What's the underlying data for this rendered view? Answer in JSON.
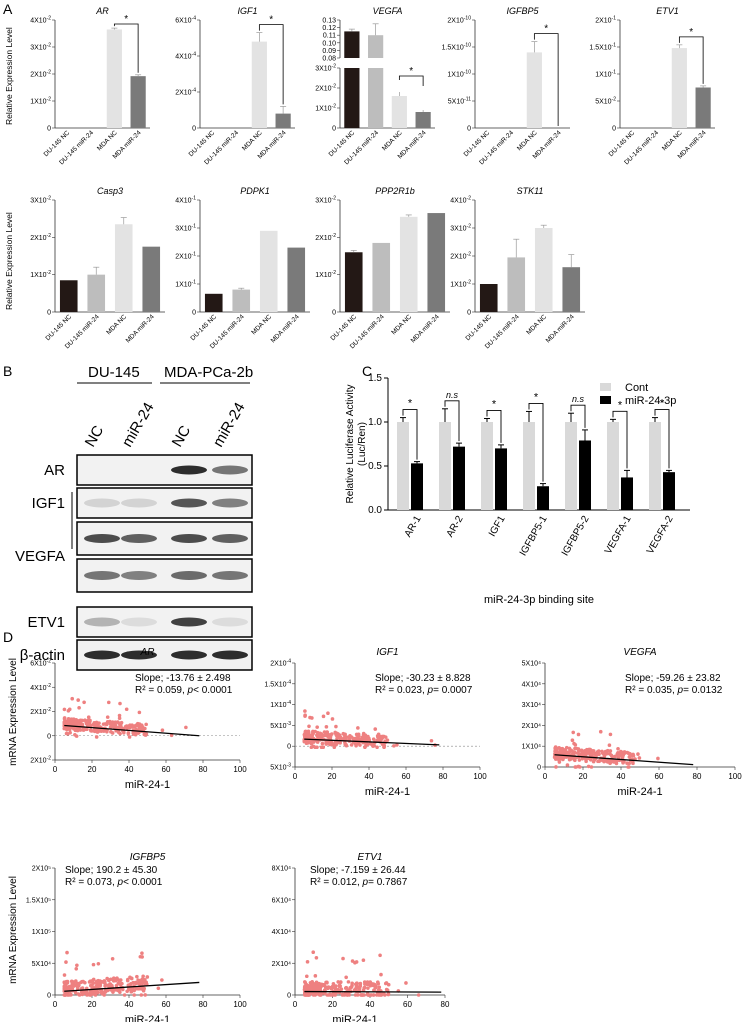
{
  "panels": {
    "A": "A",
    "B": "B",
    "C": "C",
    "D": "D"
  },
  "colors": {
    "nc_du": "#231815",
    "mir_du": "#bdbdbd",
    "nc_mda": "#e3e3e3",
    "mir_mda": "#7a7a7a",
    "scatter": "#ee8080",
    "cont": "#d9d9d9",
    "mir": "#000000"
  },
  "panelA": {
    "ylabel": "Relative Expression Level",
    "categories": [
      "DU-145 NC",
      "DU-145 miR-24",
      "MDA NC",
      "MDA miR-24"
    ],
    "charts": [
      {
        "title": "AR",
        "ticks": [
          "0",
          "1X10-2",
          "2X10-2",
          "3X10-2",
          "4X10-2"
        ],
        "ymax": 4,
        "values": [
          0,
          0,
          3.65,
          1.92
        ],
        "errors": [
          0,
          0,
          0.05,
          0.05
        ],
        "sig": "*"
      },
      {
        "title": "IGF1",
        "ticks": [
          "0",
          "2X10-4",
          "4X10-4",
          "6X10-4"
        ],
        "ymax": 6,
        "values": [
          0,
          0,
          4.8,
          0.8
        ],
        "errors": [
          0,
          0,
          0.5,
          0.4
        ],
        "sig": "*"
      },
      {
        "title": "VEGFA",
        "ticks_top": [
          "0.08",
          "0.09",
          "0.10",
          "0.11",
          "0.12",
          "0.13"
        ],
        "ticks_bottom": [
          "0",
          "1X10-2",
          "2X10-2",
          "3X10-2"
        ],
        "values": [
          0.115,
          0.11,
          0.016,
          0.008
        ],
        "errors": [
          0.003,
          0.015,
          0.002,
          0.001
        ],
        "sig": "*"
      },
      {
        "title": "IGFBP5",
        "ticks": [
          "0",
          "5X10-11",
          "1X10-10",
          "1.5X10-10",
          "2X10-10"
        ],
        "ymax": 2,
        "values": [
          0,
          0,
          1.4,
          0
        ],
        "errors": [
          0,
          0,
          0.2,
          0
        ],
        "sig": "*"
      },
      {
        "title": "ETV1",
        "ticks": [
          "0",
          "5X10-2",
          "1X10-1",
          "1.5X10-1",
          "2X10-1"
        ],
        "ymax": 2,
        "values": [
          0,
          0,
          1.48,
          0.75
        ],
        "errors": [
          0,
          0,
          0.06,
          0.03
        ],
        "sig": "*"
      },
      {
        "title": "Casp3",
        "ticks": [
          "0",
          "1X10-2",
          "2X10-2",
          "3X10-2"
        ],
        "ymax": 3,
        "values": [
          0.85,
          1.0,
          2.35,
          1.75
        ],
        "errors": [
          0,
          0.2,
          0.18,
          0
        ],
        "sig": ""
      },
      {
        "title": "PDPK1",
        "ticks": [
          "0",
          "1X10-1",
          "2X10-1",
          "3X10-1",
          "4X10-1"
        ],
        "ymax": 4,
        "values": [
          0.65,
          0.8,
          2.9,
          2.3
        ],
        "errors": [
          0,
          0.05,
          0,
          0
        ],
        "sig": ""
      },
      {
        "title": "PPP2R1b",
        "ticks": [
          "0",
          "1X10-2",
          "2X10-2",
          "3X10-2"
        ],
        "ymax": 3,
        "values": [
          1.6,
          1.85,
          2.55,
          2.65
        ],
        "errors": [
          0.05,
          0,
          0.05,
          0
        ],
        "sig": ""
      },
      {
        "title": "STK11",
        "ticks": [
          "0",
          "1X10-2",
          "2X10-2",
          "3X10-2",
          "4X10-2"
        ],
        "ymax": 4,
        "values": [
          1.0,
          1.95,
          3.0,
          1.6
        ],
        "errors": [
          0,
          0.65,
          0.1,
          0.45
        ],
        "sig": ""
      }
    ]
  },
  "panelB": {
    "groups": [
      "DU-145",
      "MDA-PCa-2b"
    ],
    "lanes": [
      "NC",
      "miR-24",
      "NC",
      "miR-24"
    ],
    "rows": [
      "AR",
      "IGF1",
      "VEGFA",
      "ETV1",
      "β-actin"
    ]
  },
  "chart_data": [
    {
      "type": "bar",
      "categories": [
        "AR-1",
        "AR-2",
        "IGF1",
        "IGFBP5-1",
        "IGFBP5-2",
        "VEGFA-1",
        "VEGFA-2"
      ],
      "series": [
        {
          "name": "Cont",
          "values": [
            1.0,
            1.0,
            1.0,
            1.0,
            1.0,
            1.0,
            1.0
          ],
          "errors": [
            0.05,
            0.15,
            0.04,
            0.12,
            0.1,
            0.03,
            0.05
          ]
        },
        {
          "name": "miR-24-3p",
          "values": [
            0.53,
            0.72,
            0.7,
            0.27,
            0.79,
            0.37,
            0.43
          ],
          "errors": [
            0.02,
            0.04,
            0.04,
            0.03,
            0.12,
            0.08,
            0.02
          ]
        }
      ],
      "significance": [
        "*",
        "n.s",
        "*",
        "*",
        "n.s",
        "*",
        "*"
      ],
      "xlabel": "miR-24-3p binding site",
      "ylabel": "Relative Luciferase Activity\n(Luc/Ren)",
      "yticks": [
        "0.0",
        "0.5",
        "1.0",
        "1.5"
      ],
      "ylim": [
        0,
        1.5
      ],
      "legend": "top-right",
      "grid": false
    }
  ],
  "panelD": {
    "ylabel": "mRNA Expression Level",
    "xlabel": "miR-24-1",
    "xticks": [
      "0",
      "20",
      "40",
      "60",
      "80",
      "100"
    ],
    "charts": [
      {
        "title": "AR",
        "yticks": [
          "2X10-2",
          "0",
          "2X10-2",
          "4X10-2",
          "6X10-2"
        ],
        "stat1": "Slope;  -13.76 ± 2.498",
        "stat2a": "R² = 0.059, ",
        "stat2b": "p",
        "stat2c": "< 0.0001",
        "ymin": -2,
        "ymax": 6,
        "slope": -0.0115,
        "intercept": 0.9,
        "zero": true
      },
      {
        "title": "IGF1",
        "yticks": [
          "5X10-3",
          "0",
          "5X10-3",
          "1X10-4",
          "1.5X10-4",
          "2X10-4"
        ],
        "stat1": "Slope;  -30.23 ± 8.828",
        "stat2a": "R² = 0.023, ",
        "stat2b": "p",
        "stat2c": "= 0.0007",
        "ymin": -0.5,
        "ymax": 2,
        "slope": -0.0019,
        "intercept": 0.18,
        "zero": true
      },
      {
        "title": "VEGFA",
        "yticks": [
          "0",
          "1X10⁴",
          "2X10⁴",
          "3X10⁴",
          "4X10⁴",
          "5X10⁴"
        ],
        "stat1": "Slope;  -59.26 ± 23.82",
        "stat2a": "R² = 0.035, ",
        "stat2b": "p",
        "stat2c": "= 0.0132",
        "ymin": 0,
        "ymax": 5,
        "slope": -0.0065,
        "intercept": 0.62,
        "zero": false
      },
      {
        "title": "IGFBP5",
        "yticks": [
          "0",
          "5X10⁴",
          "1X10⁵",
          "1.5X10⁵",
          "2X10⁵"
        ],
        "stat1": "Slope;  190.2 ± 45.30",
        "stat2a": "R² = 0.073, ",
        "stat2b": "p",
        "stat2c": "< 0.0001",
        "ymin": 0,
        "ymax": 2,
        "slope": 0.0019,
        "intercept": 0.05,
        "zero": false
      },
      {
        "title": "ETV1",
        "yticks": [
          "0",
          "2X10⁴",
          "4X10⁴",
          "6X10⁴",
          "8X10⁴"
        ],
        "stat1": "Slope;  -7.159 ± 26.44",
        "stat2a": "R² = 0.012, ",
        "stat2b": "p",
        "stat2c": "= 0.7867",
        "ymin": 0,
        "ymax": 8,
        "slope": -0.0005,
        "intercept": 0.22,
        "zero": false
      }
    ]
  }
}
